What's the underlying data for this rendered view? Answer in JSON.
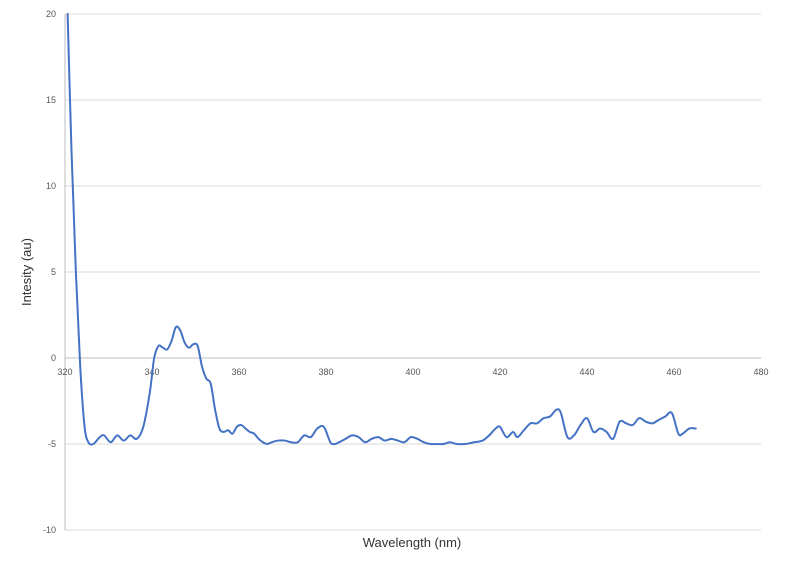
{
  "chart_data": {
    "type": "line",
    "title": "",
    "xlabel": "Wavelength (nm)",
    "ylabel": "Intesity (au)",
    "xlim": [
      320,
      480
    ],
    "ylim": [
      -10,
      20
    ],
    "x_ticks": [
      320,
      340,
      360,
      380,
      400,
      420,
      440,
      460,
      480
    ],
    "y_ticks": [
      -10,
      -5,
      0,
      5,
      10,
      15,
      20
    ],
    "x_tick_labels": [
      "320",
      "340",
      "360",
      "380",
      "400",
      "420",
      "440",
      "460",
      "480"
    ],
    "y_tick_labels": [
      "-10",
      "-5",
      "0",
      "5",
      "10",
      "15",
      "20"
    ],
    "grid": "horizontal",
    "legend": "none",
    "line_color": "#4472C4",
    "series": [
      {
        "x": [
          320.6,
          321.5,
          322.5,
          323.5,
          324.5,
          325.4,
          326.5,
          328.0,
          329.0,
          330.5,
          332.0,
          333.5,
          335.0,
          336.5,
          338.0,
          339.5,
          340.5,
          341.5,
          342.5,
          343.5,
          344.5,
          345.5,
          346.5,
          347.5,
          348.5,
          349.5,
          350.5,
          351.5,
          352.5,
          353.5,
          354.5,
          355.5,
          356.5,
          357.5,
          358.5,
          359.5,
          360.5,
          361.5,
          362.5,
          363.5,
          364.5,
          365.5,
          366.5,
          367.5,
          369.0,
          370.5,
          372.0,
          373.5,
          375.0,
          376.5,
          378.0,
          379.5,
          381.0,
          382.0,
          383.0,
          384.5,
          386.0,
          387.5,
          389.0,
          390.5,
          392.0,
          393.5,
          395.0,
          396.5,
          398.0,
          399.5,
          401.0,
          402.5,
          404.0,
          405.5,
          407.0,
          408.5,
          410.0,
          412.0,
          414.0,
          416.0,
          417.5,
          419.0,
          420.0,
          421.5,
          423.0,
          424.0,
          425.5,
          427.0,
          428.5,
          430.0,
          431.5,
          433.0,
          434.0,
          435.5,
          437.0,
          438.5,
          440.0,
          441.5,
          443.0,
          444.5,
          446.0,
          447.5,
          449.0,
          450.5,
          452.0,
          453.5,
          455.0,
          456.5,
          458.0,
          459.5,
          461.0,
          462.0,
          463.5,
          465.0
        ],
        "y": [
          20.0,
          12.0,
          5.0,
          -0.5,
          -4.0,
          -4.9,
          -5.0,
          -4.6,
          -4.5,
          -4.9,
          -4.5,
          -4.8,
          -4.5,
          -4.7,
          -4.0,
          -2.0,
          0.0,
          0.7,
          0.6,
          0.5,
          1.0,
          1.8,
          1.6,
          0.9,
          0.6,
          0.8,
          0.7,
          -0.5,
          -1.2,
          -1.5,
          -3.0,
          -4.1,
          -4.3,
          -4.2,
          -4.4,
          -4.0,
          -3.9,
          -4.1,
          -4.3,
          -4.4,
          -4.7,
          -4.9,
          -5.0,
          -4.9,
          -4.8,
          -4.8,
          -4.9,
          -4.9,
          -4.5,
          -4.6,
          -4.1,
          -4.0,
          -4.9,
          -5.0,
          -4.9,
          -4.7,
          -4.5,
          -4.6,
          -4.9,
          -4.7,
          -4.6,
          -4.8,
          -4.7,
          -4.8,
          -4.9,
          -4.6,
          -4.7,
          -4.9,
          -5.0,
          -5.0,
          -5.0,
          -4.9,
          -5.0,
          -5.0,
          -4.9,
          -4.8,
          -4.5,
          -4.1,
          -4.0,
          -4.6,
          -4.3,
          -4.6,
          -4.2,
          -3.8,
          -3.8,
          -3.5,
          -3.4,
          -3.0,
          -3.2,
          -4.6,
          -4.5,
          -3.9,
          -3.5,
          -4.3,
          -4.1,
          -4.3,
          -4.7,
          -3.7,
          -3.8,
          -3.9,
          -3.5,
          -3.7,
          -3.8,
          -3.6,
          -3.4,
          -3.2,
          -4.4,
          -4.4,
          -4.1,
          -4.1
        ]
      }
    ]
  }
}
